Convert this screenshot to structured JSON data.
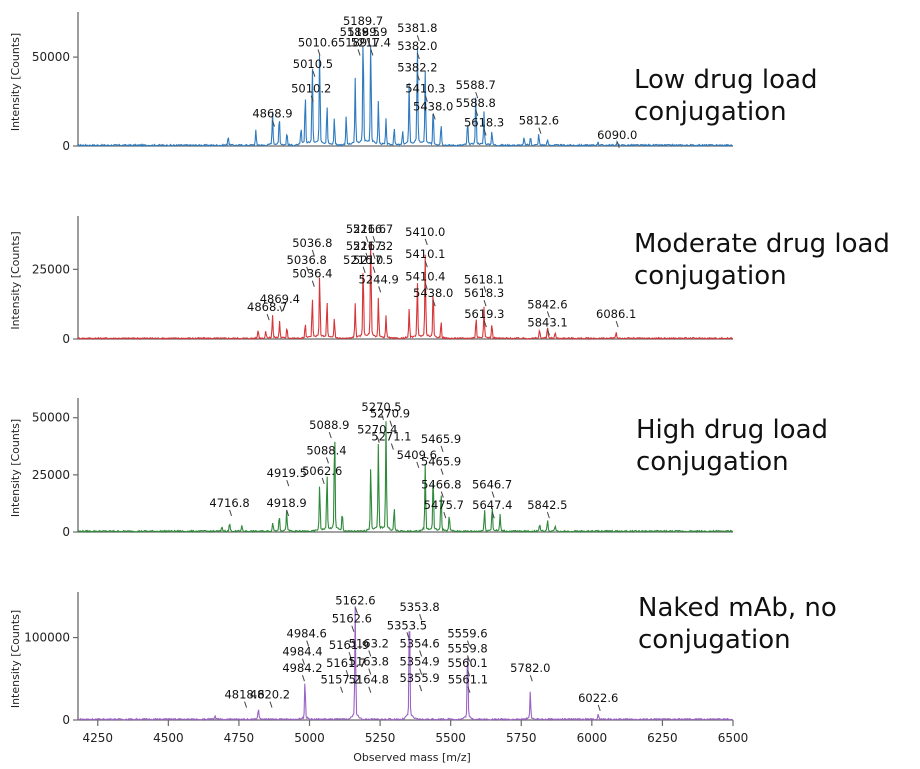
{
  "x_axis": {
    "title": "Observed mass [m/z]",
    "range": [
      4180,
      6500
    ],
    "ticks": [
      4250,
      4500,
      4750,
      5000,
      5250,
      5500,
      5750,
      6000,
      6250,
      6500
    ]
  },
  "chart_data": [
    {
      "type": "line",
      "id": "low",
      "color": "#2e7bbf",
      "ylabel": "Intensity [Counts]",
      "yticks": [
        0,
        50000
      ],
      "ylim": [
        0,
        72000
      ],
      "annotation": [
        "Low drug load",
        "conjugation"
      ],
      "peaks": [
        {
          "x": 4712,
          "y": 5000
        },
        {
          "x": 4810,
          "y": 8000
        },
        {
          "x": 4869,
          "y": 18000
        },
        {
          "x": 4893,
          "y": 16000
        },
        {
          "x": 4920,
          "y": 7000
        },
        {
          "x": 4970,
          "y": 9000
        },
        {
          "x": 4985,
          "y": 28000
        },
        {
          "x": 5010,
          "y": 44000
        },
        {
          "x": 5036,
          "y": 52000
        },
        {
          "x": 5062,
          "y": 22000
        },
        {
          "x": 5088,
          "y": 15000
        },
        {
          "x": 5130,
          "y": 16000
        },
        {
          "x": 5162,
          "y": 36000
        },
        {
          "x": 5190,
          "y": 62000
        },
        {
          "x": 5217,
          "y": 58000
        },
        {
          "x": 5244,
          "y": 24000
        },
        {
          "x": 5271,
          "y": 14000
        },
        {
          "x": 5300,
          "y": 10000
        },
        {
          "x": 5330,
          "y": 8000
        },
        {
          "x": 5353,
          "y": 34000
        },
        {
          "x": 5382,
          "y": 55000
        },
        {
          "x": 5410,
          "y": 40000
        },
        {
          "x": 5438,
          "y": 20000
        },
        {
          "x": 5466,
          "y": 12000
        },
        {
          "x": 5560,
          "y": 13000
        },
        {
          "x": 5589,
          "y": 28000
        },
        {
          "x": 5618,
          "y": 18000
        },
        {
          "x": 5646,
          "y": 8000
        },
        {
          "x": 5760,
          "y": 4000
        },
        {
          "x": 5783,
          "y": 4500
        },
        {
          "x": 5812,
          "y": 6000
        },
        {
          "x": 5843,
          "y": 3000
        },
        {
          "x": 6022,
          "y": 2000
        },
        {
          "x": 6090,
          "y": 2000
        }
      ],
      "labels": [
        {
          "text": "5189.7",
          "x": 5189.7,
          "y": 68000
        },
        {
          "text": "5189.5",
          "x": 5178,
          "y": 62000
        },
        {
          "text": "5189.9",
          "x": 5205,
          "y": 62000
        },
        {
          "text": "5381.8",
          "x": 5381.8,
          "y": 64000
        },
        {
          "text": "5010.6",
          "x": 5030,
          "y": 56000
        },
        {
          "text": "5189.1",
          "x": 5172,
          "y": 56000
        },
        {
          "text": "5217.4",
          "x": 5217.4,
          "y": 56000
        },
        {
          "text": "5382.0",
          "x": 5382.0,
          "y": 54000
        },
        {
          "text": "5010.5",
          "x": 5012,
          "y": 44000
        },
        {
          "text": "5382.2",
          "x": 5382.2,
          "y": 42000
        },
        {
          "text": "5588.7",
          "x": 5588.7,
          "y": 32000
        },
        {
          "text": "5010.2",
          "x": 5006,
          "y": 30000
        },
        {
          "text": "5410.3",
          "x": 5410.3,
          "y": 30000
        },
        {
          "text": "5588.8",
          "x": 5588.8,
          "y": 22000
        },
        {
          "text": "5438.0",
          "x": 5438.0,
          "y": 20000
        },
        {
          "text": "4868.9",
          "x": 4868.9,
          "y": 16000
        },
        {
          "text": "5812.6",
          "x": 5812.6,
          "y": 12000
        },
        {
          "text": "5618.3",
          "x": 5618.3,
          "y": 11000
        },
        {
          "text": "6090.0",
          "x": 6090.0,
          "y": 4000
        }
      ]
    },
    {
      "type": "line",
      "id": "moderate",
      "color": "#d6363a",
      "ylabel": "Intensity [Counts]",
      "yticks": [
        0,
        25000
      ],
      "ylim": [
        0,
        42000
      ],
      "annotation": [
        "Moderate drug load",
        "conjugation"
      ],
      "peaks": [
        {
          "x": 4818,
          "y": 3000
        },
        {
          "x": 4845,
          "y": 2500
        },
        {
          "x": 4869,
          "y": 8000
        },
        {
          "x": 4894,
          "y": 6000
        },
        {
          "x": 4920,
          "y": 4000
        },
        {
          "x": 4985,
          "y": 5000
        },
        {
          "x": 5010,
          "y": 14000
        },
        {
          "x": 5036,
          "y": 22000
        },
        {
          "x": 5062,
          "y": 13000
        },
        {
          "x": 5088,
          "y": 7000
        },
        {
          "x": 5162,
          "y": 12000
        },
        {
          "x": 5190,
          "y": 26000
        },
        {
          "x": 5217,
          "y": 35000
        },
        {
          "x": 5244,
          "y": 14000
        },
        {
          "x": 5271,
          "y": 8000
        },
        {
          "x": 5353,
          "y": 10000
        },
        {
          "x": 5382,
          "y": 20000
        },
        {
          "x": 5410,
          "y": 29000
        },
        {
          "x": 5438,
          "y": 17000
        },
        {
          "x": 5466,
          "y": 6000
        },
        {
          "x": 5590,
          "y": 7000
        },
        {
          "x": 5618,
          "y": 11000
        },
        {
          "x": 5646,
          "y": 5000
        },
        {
          "x": 5815,
          "y": 3000
        },
        {
          "x": 5843,
          "y": 4000
        },
        {
          "x": 5870,
          "y": 2000
        },
        {
          "x": 6086,
          "y": 2000
        }
      ],
      "labels": [
        {
          "text": "5216.6",
          "x": 5200,
          "y": 38000
        },
        {
          "text": "5216.7",
          "x": 5225,
          "y": 38000
        },
        {
          "text": "5410.0",
          "x": 5410.0,
          "y": 37000
        },
        {
          "text": "5036.8",
          "x": 5010,
          "y": 33000
        },
        {
          "text": "5216.3",
          "x": 5200,
          "y": 32000
        },
        {
          "text": "5217.2",
          "x": 5225,
          "y": 32000
        },
        {
          "text": "5036.8",
          "x": 4990,
          "y": 27000
        },
        {
          "text": "5216.0",
          "x": 5190,
          "y": 27000
        },
        {
          "text": "5217.5",
          "x": 5225,
          "y": 27000
        },
        {
          "text": "5410.1",
          "x": 5410.1,
          "y": 29000
        },
        {
          "text": "5036.4",
          "x": 5010,
          "y": 22000
        },
        {
          "text": "5410.4",
          "x": 5410.4,
          "y": 21000
        },
        {
          "text": "5618.1",
          "x": 5618.1,
          "y": 20000
        },
        {
          "text": "5244.9",
          "x": 5244.9,
          "y": 20000
        },
        {
          "text": "4869.4",
          "x": 4895,
          "y": 13000
        },
        {
          "text": "5438.0",
          "x": 5438.0,
          "y": 15000
        },
        {
          "text": "5618.3",
          "x": 5618.3,
          "y": 15000
        },
        {
          "text": "4868.7",
          "x": 4850,
          "y": 10000
        },
        {
          "text": "5842.6",
          "x": 5842.6,
          "y": 11000
        },
        {
          "text": "5619.3",
          "x": 5619.3,
          "y": 7500
        },
        {
          "text": "6086.1",
          "x": 6086.1,
          "y": 7500
        },
        {
          "text": "5843.1",
          "x": 5843.1,
          "y": 4500
        }
      ]
    },
    {
      "type": "line",
      "id": "high",
      "color": "#2e8a3a",
      "ylabel": "Intensity [Counts]",
      "yticks": [
        0,
        25000,
        50000
      ],
      "ylim": [
        0,
        56000
      ],
      "annotation": [
        "High drug load",
        "conjugation"
      ],
      "peaks": [
        {
          "x": 4690,
          "y": 2000
        },
        {
          "x": 4717,
          "y": 3500
        },
        {
          "x": 4760,
          "y": 2500
        },
        {
          "x": 4870,
          "y": 4000
        },
        {
          "x": 4893,
          "y": 7000
        },
        {
          "x": 4919,
          "y": 9000
        },
        {
          "x": 5036,
          "y": 20000
        },
        {
          "x": 5062,
          "y": 25000
        },
        {
          "x": 5089,
          "y": 44000
        },
        {
          "x": 5116,
          "y": 8000
        },
        {
          "x": 5217,
          "y": 28000
        },
        {
          "x": 5244,
          "y": 37000
        },
        {
          "x": 5271,
          "y": 46000
        },
        {
          "x": 5300,
          "y": 10000
        },
        {
          "x": 5410,
          "y": 28000
        },
        {
          "x": 5438,
          "y": 24000
        },
        {
          "x": 5466,
          "y": 17000
        },
        {
          "x": 5495,
          "y": 7000
        },
        {
          "x": 5620,
          "y": 9000
        },
        {
          "x": 5647,
          "y": 11000
        },
        {
          "x": 5675,
          "y": 7000
        },
        {
          "x": 5815,
          "y": 3000
        },
        {
          "x": 5843,
          "y": 5000
        },
        {
          "x": 5870,
          "y": 2500
        }
      ],
      "labels": [
        {
          "text": "5270.5",
          "x": 5255,
          "y": 53000
        },
        {
          "text": "5270.9",
          "x": 5285,
          "y": 50000
        },
        {
          "text": "5088.9",
          "x": 5070,
          "y": 45000
        },
        {
          "text": "5270.4",
          "x": 5240,
          "y": 43000
        },
        {
          "text": "5271.1",
          "x": 5290,
          "y": 40000
        },
        {
          "text": "5465.9",
          "x": 5465.9,
          "y": 39000
        },
        {
          "text": "5088.4",
          "x": 5060,
          "y": 34000
        },
        {
          "text": "5409.6",
          "x": 5380,
          "y": 32000
        },
        {
          "text": "5465.9",
          "x": 5465.9,
          "y": 29000
        },
        {
          "text": "4919.5",
          "x": 4919.5,
          "y": 24000
        },
        {
          "text": "5062.6",
          "x": 5045,
          "y": 25000
        },
        {
          "text": "5466.8",
          "x": 5466.8,
          "y": 19000
        },
        {
          "text": "5646.7",
          "x": 5646.7,
          "y": 19000
        },
        {
          "text": "4716.8",
          "x": 4716.8,
          "y": 11000
        },
        {
          "text": "4918.9",
          "x": 4918.9,
          "y": 11000
        },
        {
          "text": "5475.7",
          "x": 5475.7,
          "y": 10000
        },
        {
          "text": "5647.4",
          "x": 5647.4,
          "y": 10000
        },
        {
          "text": "5842.5",
          "x": 5842.5,
          "y": 10000
        }
      ]
    },
    {
      "type": "line",
      "id": "naked",
      "color": "#9a63c4",
      "ylabel": "Intensity [Counts]",
      "yticks": [
        0,
        100000
      ],
      "ylim": [
        0,
        148000
      ],
      "annotation": [
        "Naked mAb, no",
        "conjugation"
      ],
      "peaks": [
        {
          "x": 4665,
          "y": 4000
        },
        {
          "x": 4818,
          "y": 7000
        },
        {
          "x": 4820,
          "y": 7000
        },
        {
          "x": 4984,
          "y": 46000
        },
        {
          "x": 5162,
          "y": 132000
        },
        {
          "x": 5354,
          "y": 136000
        },
        {
          "x": 5560,
          "y": 88000
        },
        {
          "x": 5782,
          "y": 32000
        },
        {
          "x": 6023,
          "y": 6000
        }
      ],
      "labels": [
        {
          "text": "5162.6",
          "x": 5162.6,
          "y": 140000
        },
        {
          "text": "5353.8",
          "x": 5390,
          "y": 132000
        },
        {
          "text": "5162.6",
          "x": 5150,
          "y": 118000
        },
        {
          "text": "5353.5",
          "x": 5345,
          "y": 110000
        },
        {
          "text": "4984.6",
          "x": 4990,
          "y": 100000
        },
        {
          "text": "5559.6",
          "x": 5559.6,
          "y": 100000
        },
        {
          "text": "5354.6",
          "x": 5390,
          "y": 88000
        },
        {
          "text": "5163.2",
          "x": 5210,
          "y": 88000
        },
        {
          "text": "5161.9",
          "x": 5140,
          "y": 86000
        },
        {
          "text": "4984.4",
          "x": 4975,
          "y": 78000
        },
        {
          "text": "5559.8",
          "x": 5559.8,
          "y": 82000
        },
        {
          "text": "5354.9",
          "x": 5390,
          "y": 66000
        },
        {
          "text": "5163.8",
          "x": 5210,
          "y": 66000
        },
        {
          "text": "5560.1",
          "x": 5560.1,
          "y": 64000
        },
        {
          "text": "4984.2",
          "x": 4975,
          "y": 58000
        },
        {
          "text": "5161.7",
          "x": 5130,
          "y": 64000
        },
        {
          "text": "5782.0",
          "x": 5782.0,
          "y": 58000
        },
        {
          "text": "5355.9",
          "x": 5390,
          "y": 46000
        },
        {
          "text": "5164.8",
          "x": 5210,
          "y": 44000
        },
        {
          "text": "5157.2",
          "x": 5110,
          "y": 44000
        },
        {
          "text": "5561.1",
          "x": 5561.1,
          "y": 44000
        },
        {
          "text": "4818.6",
          "x": 4770,
          "y": 26000
        },
        {
          "text": "4820.2",
          "x": 4860,
          "y": 26000
        },
        {
          "text": "6022.6",
          "x": 6022.6,
          "y": 22000
        }
      ]
    }
  ]
}
